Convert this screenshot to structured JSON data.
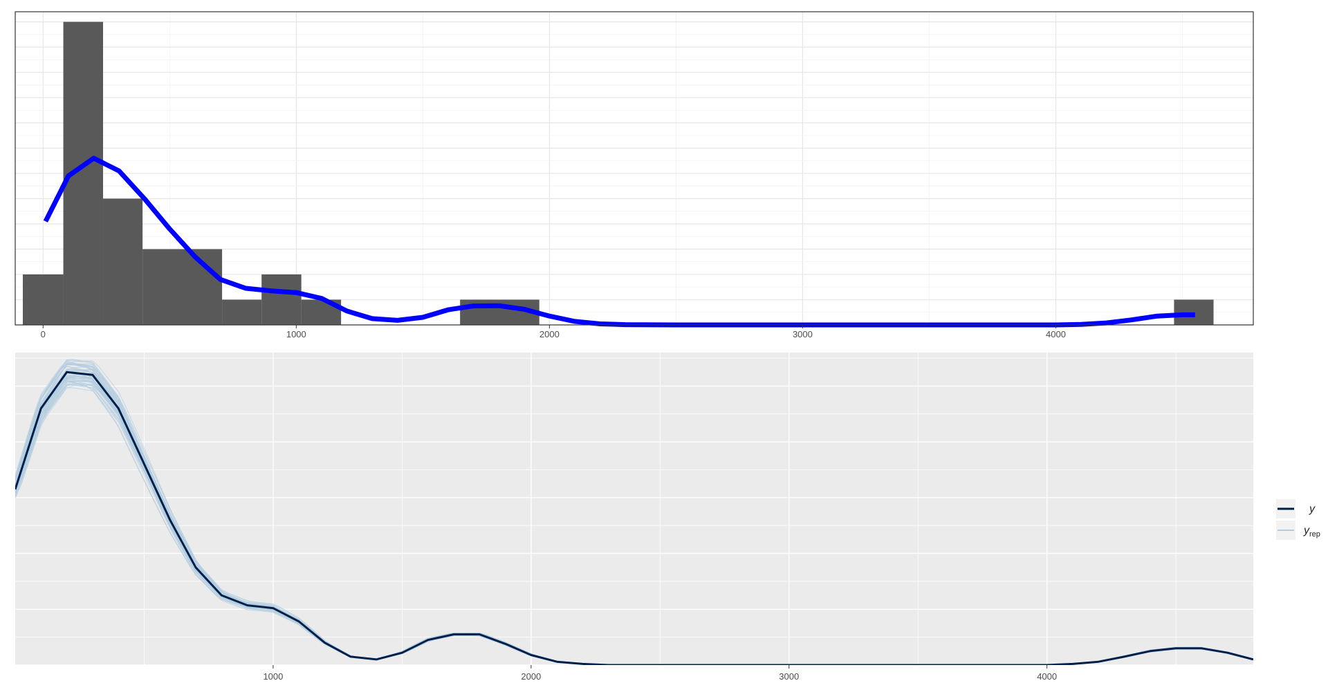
{
  "chart_data": [
    {
      "type": "bar",
      "subtype": "histogram-with-density",
      "title": "",
      "xlabel": "",
      "ylabel": "",
      "xlim": [
        -110,
        4780
      ],
      "ylim": [
        0,
        12.4
      ],
      "x_ticks": [
        0,
        1000,
        2000,
        3000,
        4000
      ],
      "x_tick_labels": [
        "0",
        "1000",
        "2000",
        "3000",
        "4000"
      ],
      "y_tick_labels": [],
      "grid": true,
      "panel_background": "#ffffff",
      "panel_border": "#333333",
      "bar_color": "#595959",
      "bins": [
        {
          "x0": -80,
          "x1": 80,
          "count": 2
        },
        {
          "x0": 80,
          "x1": 237,
          "count": 12
        },
        {
          "x0": 237,
          "x1": 393,
          "count": 5
        },
        {
          "x0": 393,
          "x1": 707,
          "count": 3
        },
        {
          "x0": 707,
          "x1": 863,
          "count": 1
        },
        {
          "x0": 863,
          "x1": 1020,
          "count": 2
        },
        {
          "x0": 1020,
          "x1": 1177,
          "count": 1
        },
        {
          "x0": 1647,
          "x1": 1960,
          "count": 1
        },
        {
          "x0": 4467,
          "x1": 4623,
          "count": 1
        }
      ],
      "density_line": {
        "color": "#0000ff",
        "x": [
          10,
          100,
          200,
          300,
          400,
          500,
          600,
          700,
          800,
          900,
          1000,
          1100,
          1200,
          1300,
          1400,
          1500,
          1600,
          1700,
          1800,
          1900,
          2000,
          2100,
          2200,
          2300,
          2500,
          3000,
          3500,
          4000,
          4100,
          4200,
          4300,
          4400,
          4500,
          4550
        ],
        "y": [
          4.1,
          5.9,
          6.6,
          6.1,
          5.0,
          3.8,
          2.7,
          1.8,
          1.45,
          1.35,
          1.28,
          1.05,
          0.55,
          0.25,
          0.18,
          0.3,
          0.6,
          0.75,
          0.76,
          0.62,
          0.35,
          0.14,
          0.04,
          0.01,
          0.0,
          0.0,
          0.0,
          0.0,
          0.02,
          0.08,
          0.2,
          0.35,
          0.4,
          0.4
        ]
      }
    },
    {
      "type": "line",
      "subtype": "density-overlay",
      "title": "",
      "xlabel": "",
      "ylabel": "",
      "xlim": [
        0,
        4800
      ],
      "ylim": [
        0,
        5.6
      ],
      "x_ticks": [
        1000,
        2000,
        3000,
        4000
      ],
      "x_tick_labels": [
        "1000",
        "2000",
        "3000",
        "4000"
      ],
      "y_tick_labels": [],
      "grid": true,
      "panel_background": "#ebebeb",
      "legend_position": "right",
      "legend": [
        {
          "label": "y",
          "color": "#011f4b"
        },
        {
          "label": "y",
          "subscript": "rep",
          "color": "#b3cde0"
        }
      ],
      "series": [
        {
          "name": "y",
          "color": "#011f4b",
          "x": [
            0,
            100,
            200,
            300,
            400,
            500,
            600,
            700,
            800,
            900,
            1000,
            1100,
            1200,
            1300,
            1400,
            1500,
            1600,
            1700,
            1800,
            1900,
            2000,
            2100,
            2200,
            2300,
            2400,
            2600,
            3000,
            3500,
            4000,
            4100,
            4200,
            4300,
            4400,
            4500,
            4600,
            4700,
            4800
          ],
          "y": [
            3.15,
            4.6,
            5.25,
            5.2,
            4.6,
            3.6,
            2.6,
            1.75,
            1.25,
            1.07,
            1.02,
            0.78,
            0.4,
            0.15,
            0.1,
            0.22,
            0.45,
            0.55,
            0.55,
            0.38,
            0.18,
            0.06,
            0.02,
            0.0,
            0.0,
            0.0,
            0.0,
            0.0,
            0.0,
            0.02,
            0.06,
            0.15,
            0.25,
            0.3,
            0.3,
            0.22,
            0.1
          ]
        }
      ]
    }
  ]
}
